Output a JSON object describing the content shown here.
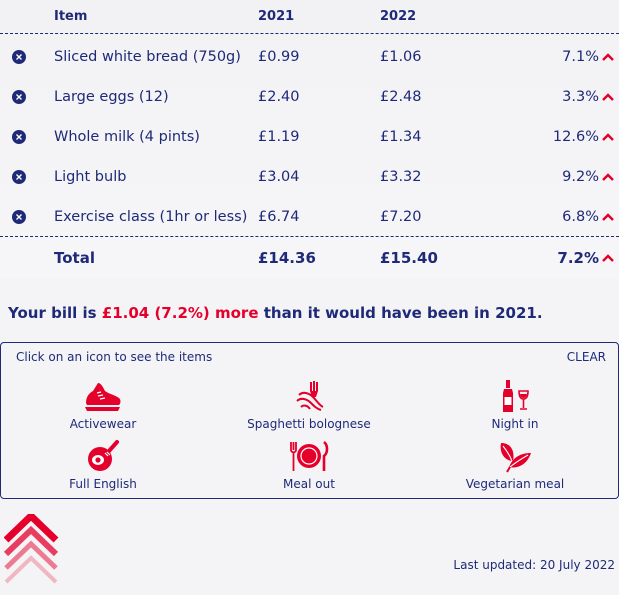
{
  "table": {
    "headers": {
      "item": "Item",
      "y1": "2021",
      "y2": "2022"
    },
    "rows": [
      {
        "item": "Sliced white bread (750g)",
        "y1": "£0.99",
        "y2": "£1.06",
        "change": "7.1%"
      },
      {
        "item": "Large eggs (12)",
        "y1": "£2.40",
        "y2": "£2.48",
        "change": "3.3%"
      },
      {
        "item": "Whole milk (4 pints)",
        "y1": "£1.19",
        "y2": "£1.34",
        "change": "12.6%"
      },
      {
        "item": "Light bulb",
        "y1": "£3.04",
        "y2": "£3.32",
        "change": "9.2%"
      },
      {
        "item": "Exercise class (1hr or less)",
        "y1": "£6.74",
        "y2": "£7.20",
        "change": "6.8%"
      }
    ],
    "total": {
      "label": "Total",
      "y1": "£14.36",
      "y2": "£15.40",
      "change": "7.2%"
    }
  },
  "bill": {
    "prefix": "Your bill is",
    "amount": "£1.04 (7.2%) more",
    "suffix": "than it would have been in 2021."
  },
  "panel": {
    "hint": "Click on an icon to see the items",
    "clear": "CLEAR",
    "options": [
      {
        "label": "Activewear",
        "icon": "trainer-icon"
      },
      {
        "label": "Spaghetti bolognese",
        "icon": "spaghetti-fork-icon"
      },
      {
        "label": "Night in",
        "icon": "wine-bottle-glass-icon"
      },
      {
        "label": "Full English",
        "icon": "frying-pan-egg-icon"
      },
      {
        "label": "Meal out",
        "icon": "plate-cutlery-icon"
      },
      {
        "label": "Vegetarian meal",
        "icon": "leaves-icon"
      }
    ]
  },
  "footer": {
    "updated": "Last updated: 20 July 2022"
  },
  "colors": {
    "navy": "#1e2a78",
    "red": "#e4002b",
    "background": "#f4f4f6"
  }
}
